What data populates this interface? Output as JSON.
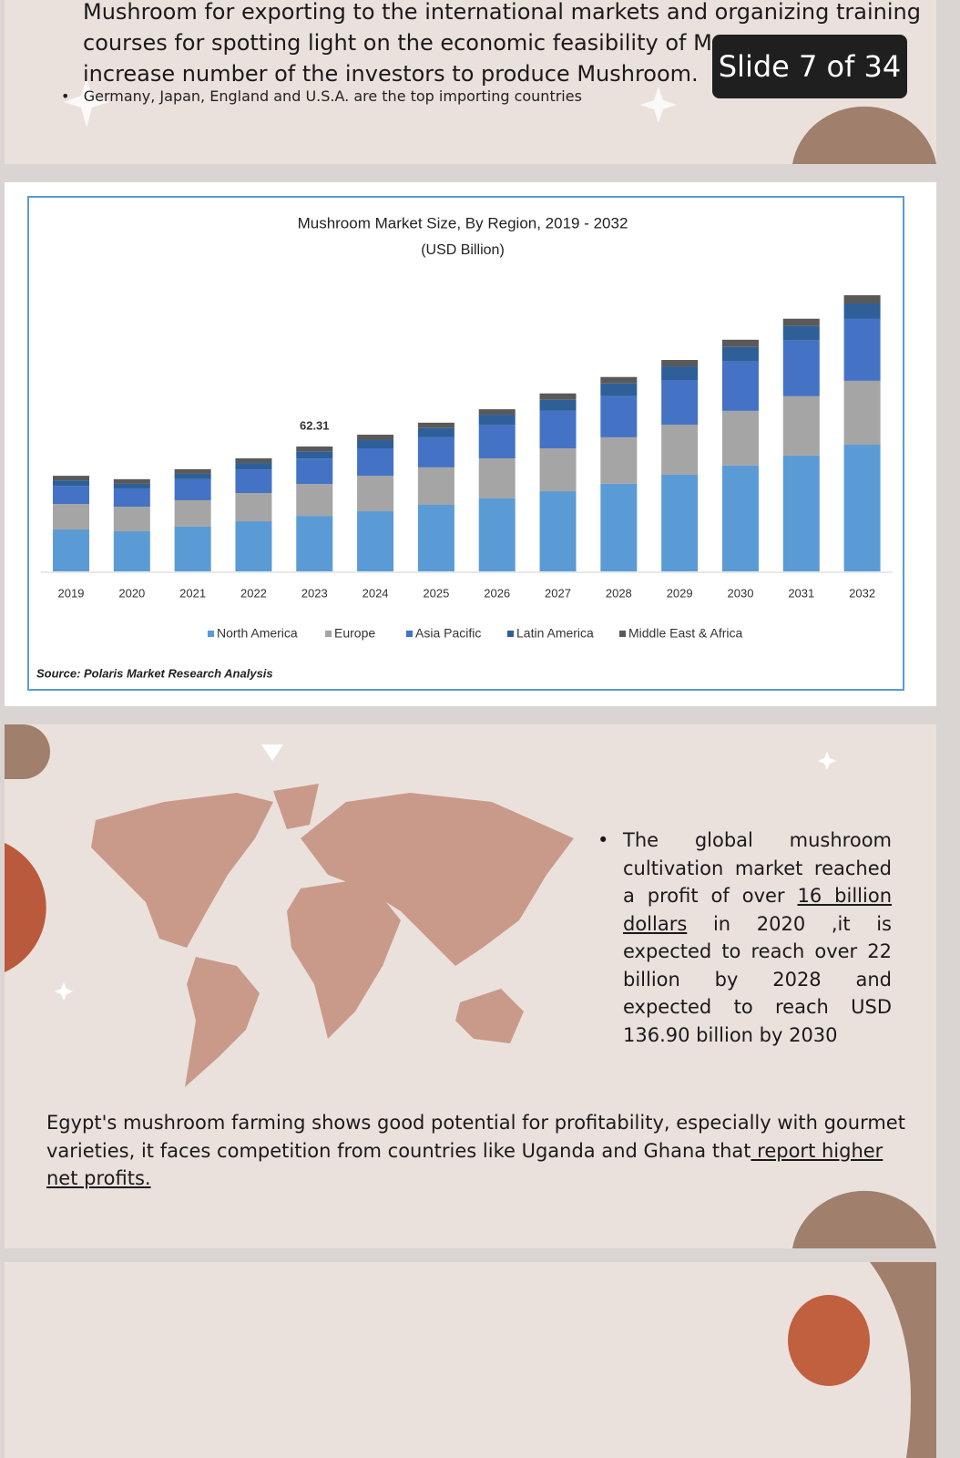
{
  "overlay": {
    "slide_counter": "Slide 7 of 34"
  },
  "slide_top": {
    "lines": [
      "Mushroom for exporting to the international markets and organizing training",
      "courses for spotting light on the economic feasibility of Mus",
      "increase number of the investors to produce Mushroom."
    ],
    "bullet": "Germany, Japan, England and U.S.A. are the top importing countries"
  },
  "chart_data": {
    "type": "bar",
    "stacked": true,
    "title": "Mushroom Market Size, By Region, 2019 - 2032",
    "subtitle": "(USD Billion)",
    "source": "Source: Polaris Market Research Analysis",
    "categories": [
      "2019",
      "2020",
      "2021",
      "2022",
      "2023",
      "2024",
      "2025",
      "2026",
      "2027",
      "2028",
      "2029",
      "2030",
      "2031",
      "2032"
    ],
    "series": [
      {
        "name": "North America",
        "color": "#5b9bd5",
        "values": [
          20.9,
          20.0,
          22.3,
          25.0,
          27.7,
          30.0,
          33.2,
          36.4,
          40.0,
          43.7,
          48.2,
          52.8,
          57.8,
          63.2
        ]
      },
      {
        "name": "Europe",
        "color": "#a5a5a5",
        "values": [
          12.7,
          12.3,
          13.2,
          14.1,
          15.9,
          17.7,
          18.7,
          20.0,
          21.4,
          23.2,
          25.0,
          27.3,
          29.6,
          31.9
        ]
      },
      {
        "name": "Asia Pacific",
        "color": "#4472c4",
        "values": [
          9.1,
          9.1,
          10.5,
          11.8,
          12.7,
          13.7,
          15.0,
          16.8,
          18.7,
          20.5,
          22.3,
          24.6,
          27.8,
          30.9
        ]
      },
      {
        "name": "Latin America",
        "color": "#2f5f98",
        "values": [
          2.7,
          2.3,
          2.7,
          3.2,
          3.6,
          4.1,
          4.6,
          5.0,
          5.5,
          6.4,
          6.8,
          7.3,
          7.3,
          7.7
        ]
      },
      {
        "name": "Middle East & Africa",
        "color": "#595959",
        "values": [
          2.3,
          2.3,
          2.3,
          2.3,
          2.41,
          2.7,
          2.7,
          2.7,
          3.2,
          3.2,
          3.2,
          3.6,
          3.6,
          4.1
        ]
      }
    ],
    "annotations": [
      {
        "text": "62.31",
        "x": "2023"
      }
    ]
  },
  "slide_map": {
    "bullet": [
      "The global mushroom cultivation market reached a profit of over ",
      "16 billion dollars",
      " in 2020 ,it is expected to reach over 22 billion by 2028 and expected to reach USD 136.90 billion by 2030"
    ],
    "paragraph": [
      "Egypt's mushroom farming shows good potential for profitability, especially with gourmet varieties, it faces competition from countries like Uganda and Ghana that",
      " report higher net profits."
    ]
  }
}
